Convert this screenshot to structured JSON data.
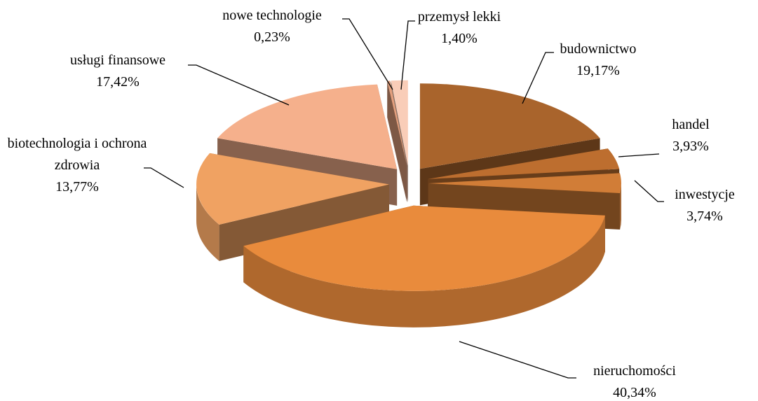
{
  "chart_data": {
    "type": "pie3d",
    "categories": [
      "budownictwo",
      "handel",
      "inwestycje",
      "nieruchomości",
      "biotechnologia i ochrona zdrowia",
      "usługi finansowe",
      "nowe technologie",
      "przemysł lekki"
    ],
    "values": [
      19.17,
      3.93,
      3.74,
      40.34,
      13.77,
      17.42,
      0.23,
      1.4
    ],
    "value_labels": [
      "19,17%",
      "3,93%",
      "3,74%",
      "40,34%",
      "13,77%",
      "17,42%",
      "0,23%",
      "1,40%"
    ],
    "colors": [
      "#a9642c",
      "#bd6e2f",
      "#d17d37",
      "#e98b3c",
      "#f0a262",
      "#f5b08c",
      "#e4a07e",
      "#f9cdb8"
    ]
  }
}
